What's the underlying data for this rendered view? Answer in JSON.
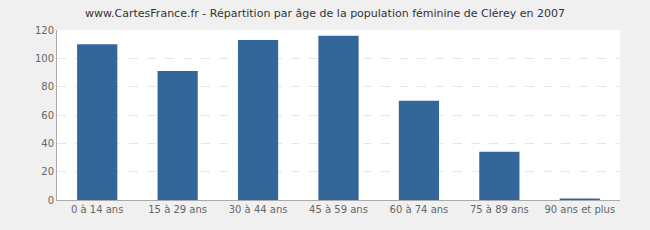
{
  "chart_data": {
    "type": "bar",
    "title": "www.CartesFrance.fr - Répartition par âge de la population féminine de Clérey en 2007",
    "categories": [
      "0 à 14 ans",
      "15 à 29 ans",
      "30 à 44 ans",
      "45 à 59 ans",
      "60 à 74 ans",
      "75 à 89 ans",
      "90 ans et plus"
    ],
    "values": [
      110,
      91,
      113,
      116,
      70,
      34,
      1
    ],
    "color": "#336699",
    "ylim": [
      0,
      120
    ],
    "yticks": [
      0,
      20,
      40,
      60,
      80,
      100,
      120
    ],
    "grid": true
  }
}
